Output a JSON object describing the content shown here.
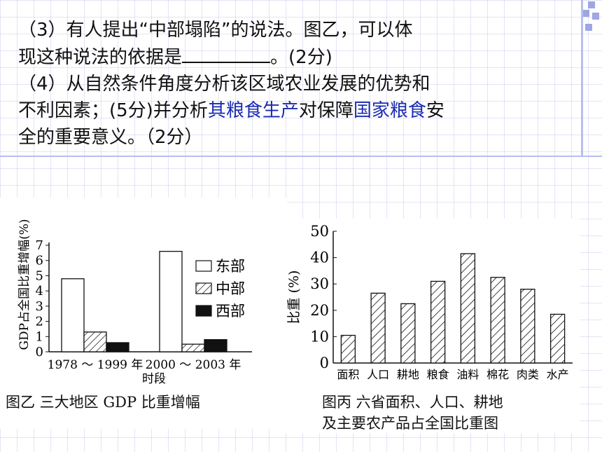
{
  "question": {
    "q3_line1": "（3）有人提出“中部塌陷”的说法。图乙，可以体",
    "q3_line2a": "现这种说法的依据是",
    "q3_line2b": "。(2分)",
    "q4_line1": "（4）从自然条件角度分析该区域农业发展的优势和",
    "q4_line2a": "不利因素；(5分)并分析",
    "q4_link1": "其粮食生产",
    "q4_line2b": "对保障",
    "q4_link2": "国家粮食",
    "q4_line2c": "安",
    "q4_line3": "全的重要意义。（2分）"
  },
  "figure_b": {
    "caption": "图乙  三大地区 GDP 比重增幅"
  },
  "figure_c": {
    "caption_line1": "图丙  六省面积、人口、耕地",
    "caption_line2": "及主要农产品占全国比重图"
  },
  "chart_data": [
    {
      "type": "bar",
      "title": "图乙  三大地区 GDP 比重增幅",
      "xlabel": "时段",
      "ylabel": "GDP占全国比重增幅(%)",
      "categories": [
        "1978 ～ 1999 年",
        "2000 ～ 2003 年"
      ],
      "series": [
        {
          "name": "东部",
          "values": [
            4.8,
            6.6
          ],
          "fill": "white"
        },
        {
          "name": "中部",
          "values": [
            1.3,
            0.5
          ],
          "fill": "hatched"
        },
        {
          "name": "西部",
          "values": [
            0.6,
            0.8
          ],
          "fill": "black"
        }
      ],
      "ylim": [
        0,
        7
      ],
      "yticks": [
        0,
        1,
        2,
        3,
        4,
        5,
        6,
        7
      ],
      "legend_position": "right",
      "grid": false
    },
    {
      "type": "bar",
      "title": "图丙  六省面积、人口、耕地及主要农产品占全国比重图",
      "xlabel": "",
      "ylabel": "比重 (%)",
      "categories": [
        "面积",
        "人口",
        "耕地",
        "粮食",
        "油料",
        "棉花",
        "肉类",
        "水产"
      ],
      "values": [
        10.5,
        26.5,
        22.5,
        31,
        41.5,
        32.5,
        28,
        18.5
      ],
      "fill": "hatched",
      "ylim": [
        0,
        50
      ],
      "yticks": [
        0,
        10,
        20,
        30,
        40,
        50
      ],
      "grid": false
    }
  ]
}
